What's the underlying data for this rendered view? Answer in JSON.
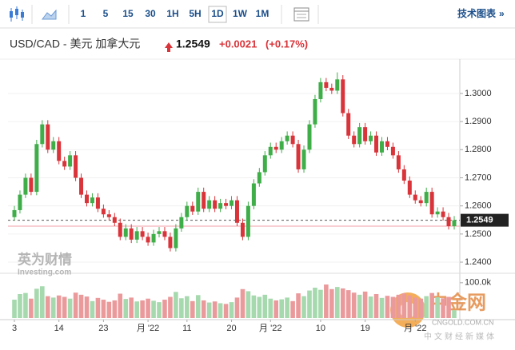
{
  "toolbar": {
    "intervals": [
      "1",
      "5",
      "15",
      "30",
      "1H",
      "5H",
      "1D",
      "1W",
      "1M"
    ],
    "selected": "1D",
    "link": "技术图表"
  },
  "chart_data": {
    "type": "candlestick",
    "title": "USD/CAD - 美元 加拿大元",
    "price": "1.2549",
    "change": "+0.0021",
    "change_percent": "(+0.17%)",
    "last": 1.2549,
    "last_label": "1.2549",
    "reference_line": 1.2528,
    "up_color": "#3fae49",
    "down_color": "#d9343a",
    "up_volume_color": "#a6d9ad",
    "down_volume_color": "#eb9a9c",
    "categories": [
      "3",
      null,
      null,
      null,
      null,
      null,
      null,
      null,
      "14",
      null,
      null,
      null,
      null,
      null,
      null,
      null,
      "23",
      null,
      null,
      null,
      null,
      null,
      null,
      null,
      "月 '22",
      null,
      null,
      null,
      null,
      null,
      null,
      "11",
      null,
      null,
      null,
      null,
      null,
      null,
      null,
      "20",
      null,
      null,
      null,
      null,
      null,
      null,
      "月 '22",
      null,
      null,
      null,
      null,
      null,
      null,
      null,
      null,
      "10",
      null,
      null,
      null,
      null,
      null,
      null,
      null,
      "19",
      null,
      null,
      null,
      null,
      null,
      null,
      null,
      null,
      "月 '22",
      null,
      null,
      null,
      null,
      null,
      null,
      null
    ],
    "open": [
      1.256,
      1.2585,
      1.264,
      1.27,
      1.265,
      1.282,
      1.289,
      1.28,
      1.283,
      1.276,
      1.274,
      1.278,
      1.27,
      1.264,
      1.261,
      1.263,
      1.259,
      1.257,
      1.256,
      1.254,
      1.249,
      1.252,
      1.248,
      1.251,
      1.249,
      1.247,
      1.25,
      1.251,
      1.249,
      1.245,
      1.252,
      1.256,
      1.26,
      1.258,
      1.265,
      1.259,
      1.262,
      1.259,
      1.261,
      1.26,
      1.262,
      1.254,
      1.249,
      1.26,
      1.268,
      1.272,
      1.278,
      1.281,
      1.28,
      1.283,
      1.285,
      1.282,
      1.273,
      1.28,
      1.289,
      1.298,
      1.304,
      1.302,
      1.301,
      1.305,
      1.293,
      1.285,
      1.282,
      1.288,
      1.283,
      1.285,
      1.279,
      1.283,
      1.281,
      1.278,
      1.273,
      1.269,
      1.264,
      1.262,
      1.261,
      1.265,
      1.257,
      1.258,
      1.256,
      1.2528
    ],
    "high": [
      1.26,
      1.2655,
      1.2715,
      1.2715,
      1.2835,
      1.2905,
      1.2905,
      1.2845,
      1.2845,
      1.2775,
      1.2795,
      1.2795,
      1.2715,
      1.2655,
      1.2645,
      1.2645,
      1.2605,
      1.2585,
      1.2575,
      1.2555,
      1.2535,
      1.2535,
      1.2525,
      1.2525,
      1.2505,
      1.2515,
      1.2525,
      1.2525,
      1.2505,
      1.2535,
      1.2575,
      1.2615,
      1.2615,
      1.2665,
      1.2665,
      1.2635,
      1.2635,
      1.2625,
      1.2625,
      1.2635,
      1.2635,
      1.2555,
      1.2615,
      1.2695,
      1.2735,
      1.2795,
      1.2825,
      1.2825,
      1.2845,
      1.2865,
      1.2865,
      1.2835,
      1.2815,
      1.2905,
      1.2995,
      1.3055,
      1.3055,
      1.3035,
      1.3075,
      1.3065,
      1.2945,
      1.2865,
      1.2895,
      1.2895,
      1.2865,
      1.2865,
      1.2845,
      1.2845,
      1.2825,
      1.2795,
      1.2745,
      1.2705,
      1.2655,
      1.2635,
      1.2665,
      1.2665,
      1.2595,
      1.2595,
      1.2575,
      1.2564
    ],
    "low": [
      1.2548,
      1.2573,
      1.2628,
      1.2638,
      1.2638,
      1.2808,
      1.2788,
      1.2788,
      1.2748,
      1.2728,
      1.2728,
      1.2688,
      1.2628,
      1.2598,
      1.2598,
      1.2578,
      1.2558,
      1.2548,
      1.2528,
      1.2478,
      1.2478,
      1.2468,
      1.2468,
      1.2478,
      1.2458,
      1.2458,
      1.2488,
      1.2478,
      1.2438,
      1.2438,
      1.2508,
      1.2548,
      1.2568,
      1.2568,
      1.2578,
      1.2578,
      1.2578,
      1.2578,
      1.2588,
      1.2588,
      1.2528,
      1.2478,
      1.2478,
      1.2588,
      1.2668,
      1.2708,
      1.2768,
      1.2788,
      1.2788,
      1.2818,
      1.2808,
      1.2718,
      1.2718,
      1.2788,
      1.2878,
      1.2968,
      1.3008,
      1.2998,
      1.2998,
      1.2918,
      1.2838,
      1.2808,
      1.2808,
      1.2818,
      1.2818,
      1.2778,
      1.2778,
      1.2798,
      1.2768,
      1.2718,
      1.2678,
      1.2628,
      1.2608,
      1.2598,
      1.2598,
      1.2558,
      1.2558,
      1.2548,
      1.2516,
      1.2516
    ],
    "close": [
      1.2585,
      1.264,
      1.27,
      1.265,
      1.282,
      1.289,
      1.28,
      1.283,
      1.276,
      1.274,
      1.278,
      1.27,
      1.264,
      1.261,
      1.263,
      1.259,
      1.257,
      1.256,
      1.254,
      1.249,
      1.252,
      1.248,
      1.251,
      1.249,
      1.247,
      1.25,
      1.251,
      1.249,
      1.245,
      1.252,
      1.256,
      1.26,
      1.258,
      1.265,
      1.259,
      1.262,
      1.259,
      1.261,
      1.26,
      1.262,
      1.254,
      1.249,
      1.26,
      1.268,
      1.272,
      1.278,
      1.281,
      1.28,
      1.283,
      1.285,
      1.282,
      1.273,
      1.28,
      1.289,
      1.298,
      1.304,
      1.302,
      1.301,
      1.305,
      1.293,
      1.285,
      1.282,
      1.288,
      1.283,
      1.285,
      1.279,
      1.283,
      1.281,
      1.278,
      1.273,
      1.269,
      1.264,
      1.262,
      1.261,
      1.265,
      1.257,
      1.258,
      1.256,
      1.2528,
      1.2549
    ],
    "ylim": [
      1.2366,
      1.3105
    ],
    "yticks": [
      {
        "value": 1.24,
        "label": "1.2400"
      },
      {
        "value": 1.25,
        "label": "1.2500"
      },
      {
        "value": 1.26,
        "label": "1.2600"
      },
      {
        "value": 1.27,
        "label": "1.2700"
      },
      {
        "value": 1.28,
        "label": "1.2800"
      },
      {
        "value": 1.29,
        "label": "1.2900"
      },
      {
        "value": 1.3,
        "label": "1.3000"
      }
    ],
    "volume": {
      "values": [
        52000,
        68000,
        71000,
        55000,
        83000,
        90000,
        62000,
        58000,
        64000,
        60000,
        55000,
        72000,
        66000,
        61000,
        48000,
        57000,
        52000,
        46000,
        50000,
        69000,
        54000,
        58000,
        47000,
        50000,
        55000,
        49000,
        45000,
        52000,
        60000,
        74000,
        56000,
        62000,
        48000,
        65000,
        50000,
        44000,
        47000,
        42000,
        40000,
        45000,
        58000,
        82000,
        76000,
        64000,
        60000,
        66000,
        55000,
        50000,
        53000,
        58000,
        48000,
        70000,
        62000,
        78000,
        86000,
        80000,
        95000,
        82000,
        88000,
        84000,
        79000,
        72000,
        66000,
        75000,
        61000,
        68000,
        57000,
        63000,
        60000,
        66000,
        70000,
        64000,
        58000,
        55000,
        62000,
        71000,
        59000,
        56000,
        60000,
        22000
      ],
      "ylim": [
        0,
        120000
      ],
      "yticks": [
        {
          "value": 100000,
          "label": "100.0k"
        }
      ]
    },
    "watermarks": [
      "英为财情",
      "Investing.com",
      "中金网",
      "CNGOLD.COM.CN",
      "中文财经新媒体"
    ]
  }
}
